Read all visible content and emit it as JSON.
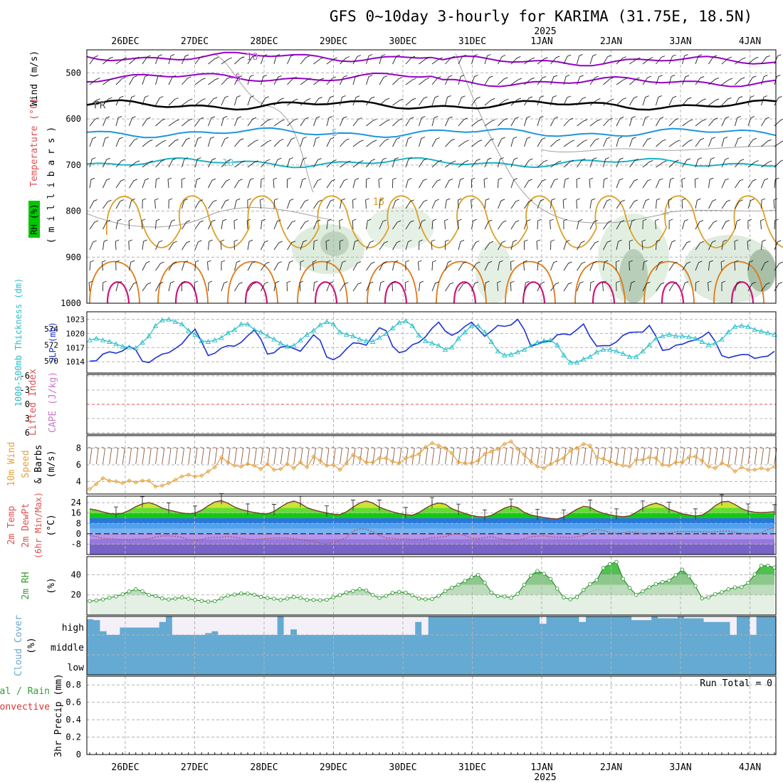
{
  "title": "GFS 0~10day 3-hourly for KARIMA (31.75E, 18.5N)",
  "year_label": "2025",
  "dates": [
    "26DEC",
    "27DEC",
    "28DEC",
    "29DEC",
    "30DEC",
    "31DEC",
    "1JAN",
    "2JAN",
    "3JAN",
    "4JAN"
  ],
  "colors": {
    "grid": "#b4b4b4",
    "axis": "#000000",
    "rh_band": "#00c800",
    "cloud": "#64aad2",
    "cloud_clear": "#f4f0f8",
    "slp": "#1e32d2",
    "thickness": "#28bec8",
    "wind_speed": "#e6a03c",
    "rh2m": "#32a032",
    "dewpoint": "#b45050"
  },
  "chart_data": [
    {
      "type": "heatmap",
      "panel": "upper-air",
      "ylabel_parts": [
        "RH (%)",
        "Temperature (°C)",
        "Wind (m/s)"
      ],
      "yunits": "( m i l l i b a r s )",
      "y_ticks": [
        500,
        600,
        700,
        800,
        900,
        1000
      ],
      "ylim": [
        1000,
        450
      ],
      "temperature_contours": [
        {
          "label": "-10",
          "pressure": 465,
          "color": "#9600c8"
        },
        {
          "label": "-5",
          "pressure": 510,
          "color": "#9600c8"
        },
        {
          "label": "FR",
          "pressure": 570,
          "color": "#000000"
        },
        {
          "label": "5",
          "pressure": 630,
          "color": "#1e96dc"
        },
        {
          "label": "10",
          "pressure": 695,
          "color": "#14b4c8"
        },
        {
          "label": "15",
          "pressure": 790,
          "color": "#dca028"
        }
      ],
      "rh_contours": [
        "10",
        "30",
        "50"
      ]
    },
    {
      "type": "line",
      "panel": "slp-thickness",
      "ylabel_left": "1000-500mb Thickness (dm)",
      "ylabel_right": "SLP (mb)",
      "y_ticks_slp": [
        1014,
        1017,
        1020,
        1023
      ],
      "y_ticks_thickness": [
        570,
        572,
        574
      ],
      "series": [
        {
          "name": "SLP (mb)",
          "axis": "slp",
          "values": [
            1014.1,
            1014.2,
            1015.6,
            1016.1,
            1015.8,
            1016.3,
            1017.3,
            1016.5,
            1014.1,
            1013.8,
            1014.8,
            1015.6,
            1015.9,
            1016.8,
            1017.8,
            1019.5,
            1020.9,
            1018.2,
            1015.3,
            1015.8,
            1016.9,
            1017.4,
            1017.3,
            1018.1,
            1019.5,
            1020.7,
            1018.8,
            1015.6,
            1015.9,
            1017.1,
            1017.3,
            1016.8,
            1016.2,
            1017.9,
            1019.7,
            1018.5,
            1015.0,
            1014.4,
            1015.2,
            1016.7,
            1018.0,
            1017.9,
            1017.5,
            1019.5,
            1021.2,
            1020.6,
            1017.3,
            1015.9,
            1016.3,
            1017.6,
            1018.1,
            1019.3,
            1021.1,
            1022.4,
            1020.5,
            1019.6,
            1020.3,
            1021.5,
            1022.4,
            1020.9,
            1019.4,
            1020.5,
            1021.7,
            1021.5,
            1021.8,
            1023.0,
            1020.8,
            1017.3,
            1017.7,
            1018.3,
            1018.3,
            1019.7,
            1019.9,
            1019.7,
            1020.8,
            1022.0,
            1019.3,
            1017.3,
            1017.4,
            1017.4,
            1018.2,
            1019.6,
            1020.2,
            1020.3,
            1020.3,
            1021.7,
            1019.4,
            1016.4,
            1016.6,
            1017.5,
            1017.7,
            1018.3,
            1018.6,
            1019.3,
            1020.3,
            1018.3,
            1015.3,
            1014.8,
            1015.2,
            1015.5,
            1015.5,
            1014.7,
            1015.0,
            1015.2,
            1016.2
          ]
        },
        {
          "name": "1000-500mb Thickness (dm)",
          "axis": "thickness",
          "values": [
            572.6,
            572.8,
            572.6,
            572.4,
            572.1,
            571.8,
            571.7,
            571.6,
            572.3,
            573.1,
            574.4,
            575.1,
            575.2,
            574.9,
            574.6,
            573.8,
            573.3,
            572.5,
            572.4,
            572.6,
            572.9,
            573.5,
            573.9,
            574.6,
            574.6,
            573.9,
            573.6,
            573.1,
            572.7,
            572.2,
            571.8,
            571.9,
            572.6,
            573.3,
            573.8,
            574.5,
            574.9,
            574.6,
            573.6,
            573.3,
            573.1,
            572.7,
            572.5,
            572.4,
            572.9,
            573.4,
            574.1,
            574.8,
            575.0,
            574.4,
            573.2,
            572.5,
            572.2,
            571.9,
            571.4,
            571.7,
            572.8,
            573.6,
            574.4,
            574.4,
            573.6,
            572.4,
            571.2,
            570.7,
            570.8,
            571.1,
            571.4,
            571.9,
            572.3,
            572.5,
            572.6,
            572.0,
            570.7,
            569.8,
            569.8,
            570.2,
            570.5,
            571.1,
            571.4,
            571.4,
            571.2,
            570.9,
            570.5,
            570.5,
            571.2,
            572.0,
            572.8,
            573.1,
            573.3,
            573.1,
            573.1,
            573.0,
            572.8,
            572.4,
            572.0,
            572.2,
            572.7,
            573.6,
            574.3,
            574.4,
            574.3,
            573.9,
            573.7,
            573.5,
            573.3
          ]
        }
      ]
    },
    {
      "type": "line",
      "panel": "cape-li",
      "ylabel_left": "Lifted Index",
      "ylabel_right": "CAPE (J/kg)",
      "y_ticks": [
        "-6",
        "-3",
        "0",
        "3",
        "6"
      ],
      "ylim": [
        -6,
        6
      ],
      "series": []
    },
    {
      "type": "line",
      "panel": "wind10m",
      "ylabel": "10m Wind Speed & Barbs (m/s)",
      "ylabel_parts": [
        "10m Wind",
        "Speed",
        "& Barbs",
        "(m/s)"
      ],
      "y_ticks": [
        4,
        6,
        8
      ],
      "ylim": [
        2.5,
        9.5
      ],
      "series": [
        {
          "name": "10m Wind Speed",
          "values": [
            3.1,
            3.7,
            4.4,
            4.1,
            4.0,
            3.8,
            4.1,
            3.9,
            4.1,
            4.1,
            3.4,
            3.5,
            3.8,
            4.2,
            4.6,
            4.8,
            4.6,
            4.7,
            5.2,
            5.7,
            6.9,
            6.3,
            5.9,
            5.8,
            6.1,
            5.9,
            5.5,
            6.1,
            5.4,
            5.5,
            6.1,
            5.6,
            6.3,
            5.7,
            7.0,
            6.5,
            5.9,
            6.0,
            5.4,
            6.2,
            7.2,
            6.8,
            6.3,
            6.3,
            6.8,
            6.8,
            6.4,
            6.2,
            6.8,
            7.0,
            7.3,
            8.1,
            8.6,
            8.3,
            8.0,
            7.4,
            6.3,
            6.2,
            6.2,
            6.5,
            7.3,
            7.6,
            7.9,
            8.5,
            8.8,
            7.9,
            7.2,
            6.4,
            5.8,
            5.6,
            6.1,
            6.5,
            6.8,
            7.7,
            8.0,
            8.5,
            8.3,
            6.9,
            6.7,
            6.4,
            6.1,
            5.9,
            5.8,
            6.6,
            6.6,
            6.9,
            6.8,
            6.0,
            5.9,
            6.3,
            6.3,
            6.9,
            7.0,
            6.5,
            5.8,
            5.6,
            6.2,
            5.9,
            5.2,
            5.7,
            5.4,
            5.4,
            5.6,
            5.4,
            5.8
          ]
        }
      ]
    },
    {
      "type": "area",
      "panel": "temp2m",
      "ylabel_parts": [
        "2m Temp",
        "2m DewPt",
        "(6hr Min/Max)",
        "(°C)"
      ],
      "y_ticks": [
        "-8",
        "0",
        "8",
        "16",
        "24"
      ],
      "ylim": [
        -16,
        29
      ],
      "series": [
        {
          "name": "2m Temp",
          "values": [
            19.2,
            18.3,
            16.8,
            15.6,
            15.2,
            15.8,
            18.0,
            20.9,
            23.1,
            24.0,
            22.4,
            19.8,
            18.3,
            17.1,
            16.0,
            15.4,
            15.9,
            18.2,
            21.6,
            24.5,
            25.5,
            23.5,
            20.6,
            18.7,
            17.5,
            16.4,
            15.6,
            15.3,
            17.2,
            20.6,
            23.6,
            25.2,
            23.4,
            20.1,
            18.4,
            17.1,
            16.0,
            15.1,
            14.8,
            16.9,
            20.5,
            23.7,
            25.3,
            23.7,
            20.5,
            18.6,
            16.9,
            15.6,
            14.8,
            14.3,
            16.3,
            19.6,
            22.4,
            23.7,
            22.8,
            19.3,
            17.4,
            15.6,
            14.2,
            13.2,
            12.9,
            14.2,
            17.0,
            19.8,
            21.3,
            20.1,
            16.5,
            14.5,
            13.4,
            12.5,
            11.8,
            11.4,
            12.9,
            15.9,
            18.9,
            21.1,
            20.5,
            17.6,
            15.8,
            14.6,
            13.7,
            13.1,
            13.8,
            16.5,
            19.8,
            22.2,
            23.6,
            22.0,
            18.8,
            17.1,
            15.4,
            14.5,
            13.7,
            14.4,
            17.5,
            21.6,
            24.6,
            25.0,
            22.6,
            19.4,
            17.5,
            16.6,
            16.3,
            16.6,
            17.0
          ]
        },
        {
          "name": "2m DewPt",
          "values": [
            -1.4,
            -2.3,
            -3.7,
            -3.9,
            -4.1,
            -4.5,
            -4.7,
            -4.1,
            -4.2,
            -3.8,
            -2.6,
            -1.7,
            -1.6,
            -2.0,
            -2.7,
            -4.6,
            -5.1,
            -4.4,
            -3.1,
            -2.8,
            -2.7,
            -2.0,
            -2.7,
            -3.3,
            -4.2,
            -4.5,
            -4.1,
            -3.6,
            -3.3,
            -3.3,
            -3.3,
            -3.8,
            -4.4,
            -5.2,
            -5.6,
            -7.4,
            -7.9,
            -6.9,
            -5.2,
            -2.9,
            2.0,
            3.8,
            3.5,
            1.5,
            -1.2,
            -3.2,
            -3.5,
            -4.3,
            -3.9,
            -4.5,
            -4.4,
            -3.9,
            -3.0,
            -2.8,
            -2.2,
            -0.4,
            -0.1,
            -1.4,
            -3.3,
            -3.9,
            -2.9,
            -2.2,
            -3.4,
            -4.3,
            -5.0,
            -4.9,
            -3.8,
            -2.3,
            -1.9,
            -1.6,
            -2.4,
            -2.7,
            -2.6,
            -2.9,
            -2.4,
            -1.4,
            1.7,
            3.2,
            2.5,
            1.0,
            0.3,
            0.7,
            1.5,
            1.1,
            0.3,
            0.4,
            0.7,
            0.5,
            0.7,
            1.4,
            1.7,
            1.6,
            1.8,
            1.5,
            1.3,
            1.4,
            2.0,
            2.1,
            1.1,
            0.4,
            0.1,
            0.3,
            0.6,
            3.3,
            4.8
          ]
        }
      ]
    },
    {
      "type": "area",
      "panel": "rh2m",
      "ylabel_parts": [
        "2m RH",
        "(%)"
      ],
      "y_ticks": [
        20,
        40
      ],
      "ylim": [
        0,
        58
      ],
      "series": [
        {
          "name": "2m RH",
          "values": [
            13.8,
            14.5,
            15.5,
            17.1,
            18.5,
            20.6,
            23.4,
            25.6,
            23.6,
            20.0,
            18.8,
            16.5,
            15.5,
            16.4,
            17.5,
            16.2,
            15.0,
            14.1,
            13.4,
            13.8,
            16.5,
            19.3,
            20.4,
            21.4,
            21.3,
            20.2,
            18.0,
            16.9,
            16.3,
            15.0,
            16.4,
            17.9,
            17.1,
            15.0,
            15.1,
            14.7,
            15.2,
            17.6,
            19.8,
            22.5,
            24.0,
            25.6,
            24.4,
            19.9,
            17.0,
            19.0,
            22.1,
            23.0,
            22.3,
            19.7,
            16.4,
            15.6,
            15.9,
            19.1,
            23.8,
            27.1,
            30.2,
            33.9,
            37.5,
            39.9,
            32.2,
            22.3,
            18.7,
            18.4,
            17.1,
            21.1,
            30.1,
            39.2,
            43.8,
            41.0,
            35.9,
            26.2,
            17.5,
            15.6,
            17.8,
            24.9,
            30.7,
            34.6,
            46.8,
            50.7,
            52.8,
            36.0,
            27.0,
            20.1,
            23.6,
            27.6,
            30.7,
            32.8,
            34.2,
            39.6,
            45.1,
            38.5,
            28.9,
            16.5,
            17.6,
            20.8,
            22.7,
            25.6,
            27.4,
            27.8,
            32.0,
            40.4,
            48.9,
            49.1,
            47.2
          ]
        }
      ]
    },
    {
      "type": "area",
      "panel": "cloud",
      "ylabel_parts": [
        "Cloud Cover",
        "(%)"
      ],
      "y_ticks": [
        "high",
        "middle",
        "low"
      ],
      "series": [
        {
          "name": "high",
          "values": [
            85,
            80,
            20,
            0,
            0,
            40,
            40,
            40,
            40,
            40,
            40,
            70,
            100,
            0,
            0,
            0,
            0,
            0,
            10,
            20,
            0,
            0,
            0,
            0,
            0,
            0,
            0,
            0,
            0,
            100,
            0,
            30,
            0,
            0,
            0,
            0,
            0,
            0,
            0,
            0,
            0,
            0,
            0,
            0,
            0,
            0,
            0,
            0,
            0,
            0,
            70,
            0,
            100,
            100,
            100,
            100,
            100,
            100,
            100,
            100,
            100,
            100,
            100,
            100,
            100,
            100,
            100,
            100,
            100,
            60,
            100,
            100,
            100,
            100,
            100,
            70,
            100,
            100,
            100,
            100,
            100,
            100,
            100,
            80,
            80,
            80,
            100,
            90,
            90,
            90,
            100,
            90,
            90,
            90,
            70,
            70,
            70,
            70,
            0,
            100,
            100,
            0,
            100,
            100,
            100
          ]
        }
      ]
    },
    {
      "type": "bar",
      "panel": "precip",
      "ylabel": "3hr Precip (mm)",
      "ylabel_parts": [
        "Total / Rain",
        "Convective"
      ],
      "y_ticks": [
        "0",
        "0.2",
        "0.4",
        "0.6",
        "0.8"
      ],
      "ylim": [
        0,
        0.9
      ],
      "annotation": "Run Total = 0",
      "values": []
    }
  ]
}
